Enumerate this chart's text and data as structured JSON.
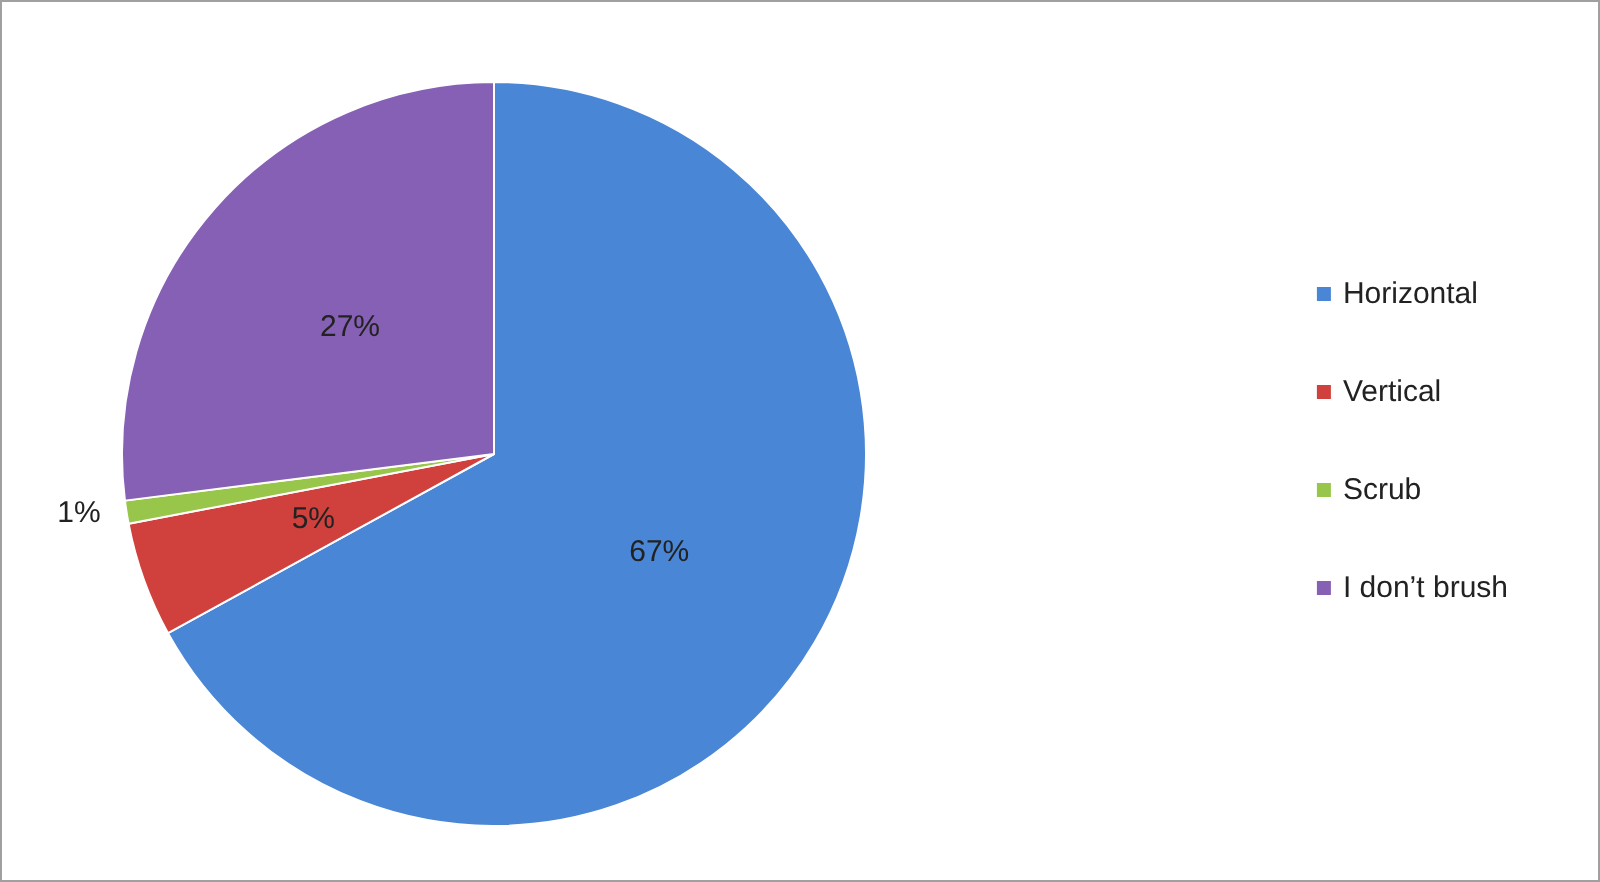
{
  "chart_data": {
    "type": "pie",
    "categories": [
      "Horizontal",
      "Vertical",
      "Scrub",
      "I don’t brush"
    ],
    "values": [
      67,
      5,
      1,
      27
    ],
    "colors": [
      "#4a86d6",
      "#d0403c",
      "#97c64a",
      "#8660b4"
    ],
    "value_labels": [
      "67%",
      "5%",
      "1%",
      "27%"
    ],
    "legend": "right"
  }
}
